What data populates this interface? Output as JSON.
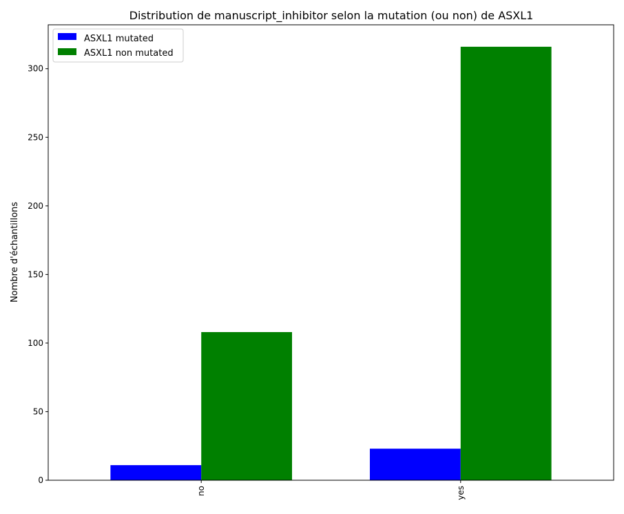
{
  "chart_data": {
    "type": "bar",
    "title": "Distribution de manuscript_inhibitor selon la mutation (ou non) de ASXL1",
    "xlabel": "",
    "ylabel": "Nombre d'échantillons",
    "categories": [
      "no",
      "yes"
    ],
    "series": [
      {
        "name": "ASXL1 mutated",
        "color": "#0000ff",
        "values": [
          11,
          23
        ]
      },
      {
        "name": "ASXL1 non mutated",
        "color": "#008000",
        "values": [
          108,
          316
        ]
      }
    ],
    "ylim": [
      0,
      332
    ],
    "yticks": [
      0,
      50,
      100,
      150,
      200,
      250,
      300
    ],
    "grid": false,
    "legend_position": "top-left"
  }
}
